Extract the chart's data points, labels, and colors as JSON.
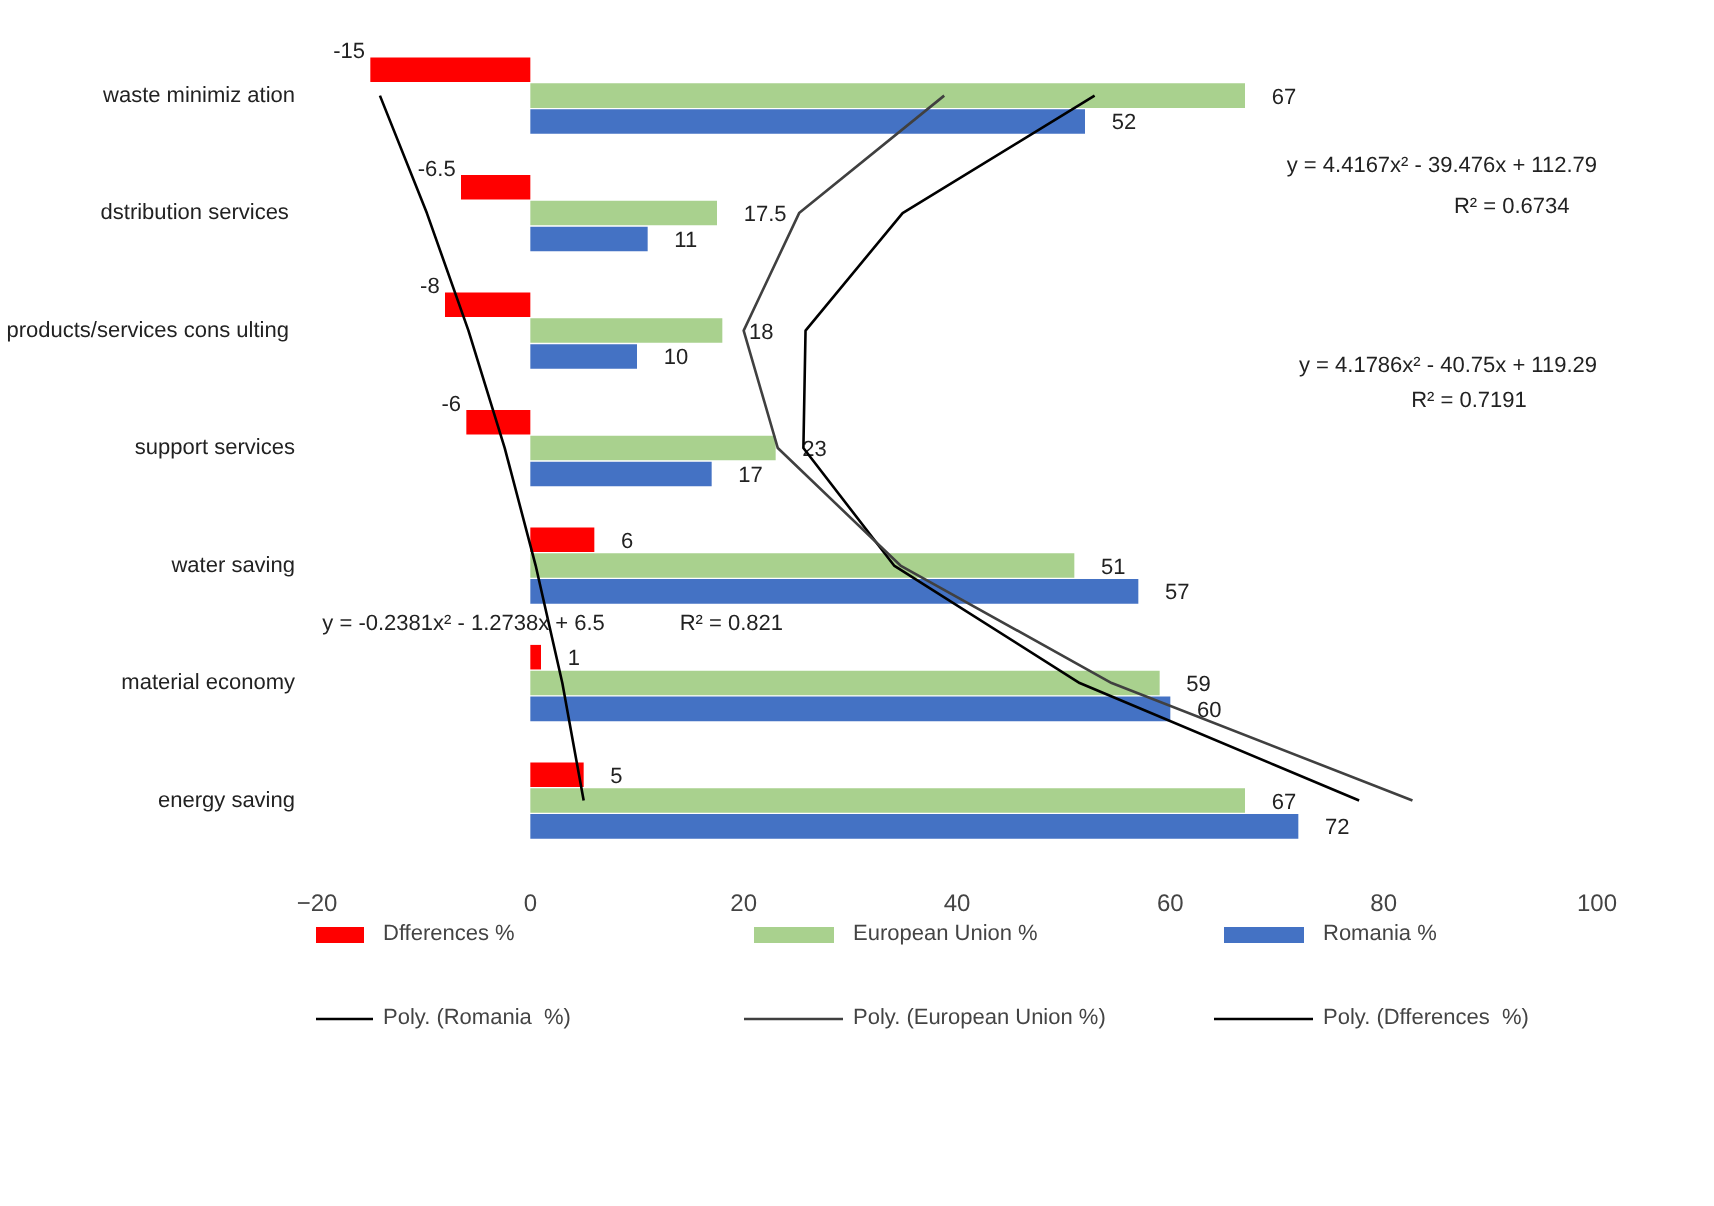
{
  "chart_data": {
    "type": "bar",
    "orientation": "horizontal",
    "categories": [
      "waste minimiz ation",
      "dstribution  services",
      "products/services  cons ulting",
      "support services",
      "water saving",
      "material economy",
      "energy saving"
    ],
    "series": [
      {
        "name": "Dfferences %",
        "color": "#ff0000",
        "values": [
          -15,
          -6.5,
          -8,
          -6,
          6,
          1,
          5
        ],
        "value_labels": [
          "-15",
          "-6.5",
          "-8",
          "-6",
          "6",
          "1",
          "5"
        ]
      },
      {
        "name": "European Union %",
        "color": "#a9d18e",
        "values": [
          67,
          17.5,
          18,
          23,
          51,
          59,
          67
        ],
        "value_labels": [
          "67",
          "17.5",
          "18",
          "23",
          "51",
          "59",
          "67"
        ]
      },
      {
        "name": "Romania %",
        "color": "#4472c4",
        "values": [
          52,
          11,
          10,
          17,
          57,
          60,
          72
        ],
        "value_labels": [
          "52",
          "11",
          "10",
          "17",
          "57",
          "60",
          "72"
        ]
      },
      {
        "name": "Poly. (Romania  %)",
        "type": "line",
        "color": "#000000",
        "values": [
          52.9,
          34.9,
          25.8,
          25.6,
          34.1,
          51.5,
          77.7
        ]
      },
      {
        "name": "Poly. (European Union %)",
        "type": "line",
        "color": "#404040",
        "values": [
          38.8,
          25.2,
          20.0,
          23.2,
          34.7,
          54.5,
          82.7
        ]
      },
      {
        "name": "Poly. (Dfferences  %)",
        "type": "line",
        "color": "#000000",
        "values": [
          -14.1,
          -9.7,
          -5.8,
          -2.4,
          0.5,
          3.0,
          5.0
        ]
      }
    ],
    "xlim": [
      -20,
      100
    ],
    "xticks": [
      -20,
      0,
      20,
      40,
      60,
      80,
      100
    ],
    "grid": false,
    "legend": "bottom",
    "annotations": [
      "y = 4.4167x² - 39.476x + 112.79",
      "R² = 0.6734",
      "y = 4.1786x² - 40.75x + 119.29",
      "R² = 0.7191",
      "y = -0.2381x² - 1.2738x + 6.5",
      "R² = 0.821"
    ]
  }
}
